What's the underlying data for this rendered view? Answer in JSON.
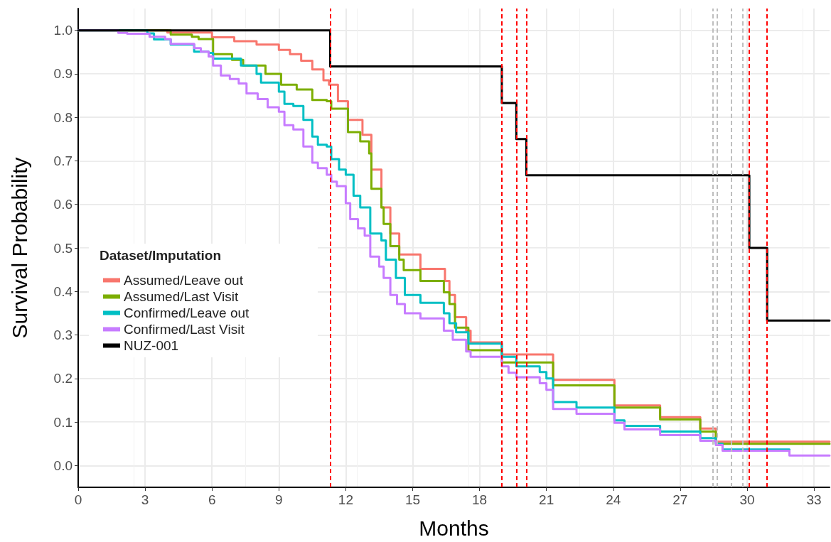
{
  "chart_data": {
    "type": "step",
    "xlabel": "Months",
    "ylabel": "Survival Probability",
    "legend_title": "Dataset/Imputation",
    "xlim": [
      0,
      33.7
    ],
    "ylim": [
      -0.05,
      1.05
    ],
    "xticks": [
      0,
      3,
      6,
      9,
      12,
      15,
      18,
      21,
      24,
      27,
      30,
      33
    ],
    "yticks": [
      {
        "value": 0,
        "label": "0.0"
      },
      0.1,
      0.2,
      0.3,
      0.4,
      0.5,
      0.6,
      0.7,
      0.8,
      0.9,
      {
        "value": 1,
        "label": "1.0"
      }
    ],
    "grid": true,
    "legend": "left",
    "marker": "none",
    "line_style": "solid",
    "series": [
      {
        "name": "Assumed/Leave out",
        "color": "#f8766d",
        "x": [
          0,
          4,
          6,
          7,
          8,
          9,
          9.5,
          10,
          10.5,
          11,
          11.25,
          11.65,
          12.1,
          12.75,
          13.15,
          13.6,
          14.0,
          14.4,
          15.35,
          16.45,
          16.65,
          16.9,
          17.4,
          17.6,
          19.0,
          21.3,
          24.05,
          26.1,
          27.9,
          28.6,
          33.7
        ],
        "values": [
          1,
          0.995,
          0.984,
          0.975,
          0.967,
          0.955,
          0.945,
          0.93,
          0.91,
          0.885,
          0.875,
          0.837,
          0.794,
          0.76,
          0.68,
          0.593,
          0.533,
          0.485,
          0.452,
          0.424,
          0.392,
          0.341,
          0.31,
          0.283,
          0.255,
          0.197,
          0.138,
          0.111,
          0.085,
          0.055,
          0.055
        ]
      },
      {
        "name": "Assumed/Last Visit",
        "color": "#7cae00",
        "x": [
          0,
          4.15,
          5.1,
          5.4,
          6.05,
          6.9,
          7.4,
          8.4,
          9.1,
          9.8,
          10.5,
          11.15,
          11.35,
          12.1,
          12.65,
          13.05,
          13.15,
          13.6,
          13.7,
          14.0,
          14.4,
          14.6,
          15.35,
          16.4,
          16.65,
          16.9,
          17.5,
          19.0,
          21.3,
          24.05,
          26.1,
          27.9,
          28.6,
          33.7
        ],
        "values": [
          1,
          0.99,
          0.985,
          0.98,
          0.945,
          0.932,
          0.919,
          0.9,
          0.875,
          0.864,
          0.84,
          0.837,
          0.82,
          0.766,
          0.745,
          0.717,
          0.636,
          0.593,
          0.555,
          0.504,
          0.473,
          0.449,
          0.424,
          0.398,
          0.371,
          0.317,
          0.265,
          0.237,
          0.184,
          0.133,
          0.106,
          0.078,
          0.05,
          0.05
        ]
      },
      {
        "name": "Confirmed/Leave out",
        "color": "#00bfc4",
        "x": [
          0,
          3.1,
          3.4,
          4.15,
          5.2,
          5.85,
          6.05,
          7.3,
          8.0,
          8.2,
          9.0,
          9.25,
          9.65,
          10.1,
          10.5,
          10.75,
          11.15,
          11.35,
          11.7,
          12.0,
          12.35,
          12.65,
          13.1,
          13.6,
          13.8,
          14.25,
          14.65,
          15.35,
          16.4,
          16.65,
          16.95,
          17.5,
          19.0,
          19.65,
          20.7,
          21.0,
          21.3,
          22.35,
          24.05,
          24.5,
          26.1,
          27.9,
          28.6,
          28.9,
          31.9
        ],
        "values": [
          1,
          0.993,
          0.979,
          0.967,
          0.951,
          0.948,
          0.935,
          0.919,
          0.9,
          0.88,
          0.859,
          0.831,
          0.826,
          0.794,
          0.756,
          0.737,
          0.733,
          0.704,
          0.68,
          0.668,
          0.62,
          0.593,
          0.533,
          0.517,
          0.473,
          0.431,
          0.392,
          0.374,
          0.35,
          0.327,
          0.306,
          0.28,
          0.25,
          0.228,
          0.215,
          0.2,
          0.146,
          0.133,
          0.104,
          0.091,
          0.078,
          0.063,
          0.05,
          0.037,
          0.037
        ]
      },
      {
        "name": "Confirmed/Last Visit",
        "color": "#c77cff",
        "x": [
          0,
          1.8,
          2.2,
          3.2,
          3.9,
          4.15,
          5.2,
          5.5,
          5.85,
          6.05,
          6.4,
          6.8,
          7.2,
          7.55,
          8.05,
          8.5,
          9.0,
          9.25,
          9.65,
          10.1,
          10.5,
          10.75,
          11.15,
          11.35,
          11.6,
          12.0,
          12.2,
          12.55,
          12.85,
          13.1,
          13.5,
          13.7,
          14.0,
          14.3,
          14.65,
          15.35,
          16.4,
          16.8,
          17.4,
          17.6,
          19.0,
          19.3,
          19.65,
          20.7,
          21.0,
          21.3,
          22.35,
          24.05,
          24.5,
          26.1,
          27.9,
          28.6,
          28.9,
          31.9,
          33.7
        ],
        "values": [
          1,
          0.994,
          0.992,
          0.985,
          0.98,
          0.969,
          0.959,
          0.951,
          0.94,
          0.919,
          0.896,
          0.888,
          0.878,
          0.855,
          0.842,
          0.823,
          0.813,
          0.782,
          0.772,
          0.733,
          0.696,
          0.683,
          0.668,
          0.652,
          0.642,
          0.603,
          0.566,
          0.545,
          0.528,
          0.48,
          0.457,
          0.431,
          0.392,
          0.371,
          0.35,
          0.338,
          0.31,
          0.289,
          0.262,
          0.25,
          0.228,
          0.213,
          0.203,
          0.189,
          0.174,
          0.13,
          0.119,
          0.098,
          0.083,
          0.07,
          0.057,
          0.047,
          0.034,
          0.023,
          0.023
        ]
      },
      {
        "name": "NUZ-001",
        "color": "#000000",
        "x": [
          0,
          11.3,
          19.0,
          19.65,
          20.1,
          30.1,
          30.9,
          33.7
        ],
        "values": [
          1,
          0.917,
          0.833,
          0.75,
          0.667,
          0.5,
          0.333,
          0.333
        ]
      }
    ],
    "ref_lines": [
      {
        "axis": "x",
        "value": 11.3,
        "color": "#ff0000",
        "line_style": "dashed"
      },
      {
        "axis": "x",
        "value": 19.0,
        "color": "#ff0000",
        "line_style": "dashed"
      },
      {
        "axis": "x",
        "value": 19.65,
        "color": "#ff0000",
        "line_style": "dashed"
      },
      {
        "axis": "x",
        "value": 20.1,
        "color": "#ff0000",
        "line_style": "dashed"
      },
      {
        "axis": "x",
        "value": 30.1,
        "color": "#ff0000",
        "line_style": "dashed"
      },
      {
        "axis": "x",
        "value": 30.9,
        "color": "#ff0000",
        "line_style": "dashed"
      },
      {
        "axis": "x",
        "value": 28.45,
        "color": "#bebebe",
        "line_style": "dashed"
      },
      {
        "axis": "x",
        "value": 28.65,
        "color": "#bebebe",
        "line_style": "dashed"
      },
      {
        "axis": "x",
        "value": 29.3,
        "color": "#bebebe",
        "line_style": "dashed"
      },
      {
        "axis": "x",
        "value": 29.8,
        "color": "#bebebe",
        "line_style": "dashed"
      }
    ]
  }
}
